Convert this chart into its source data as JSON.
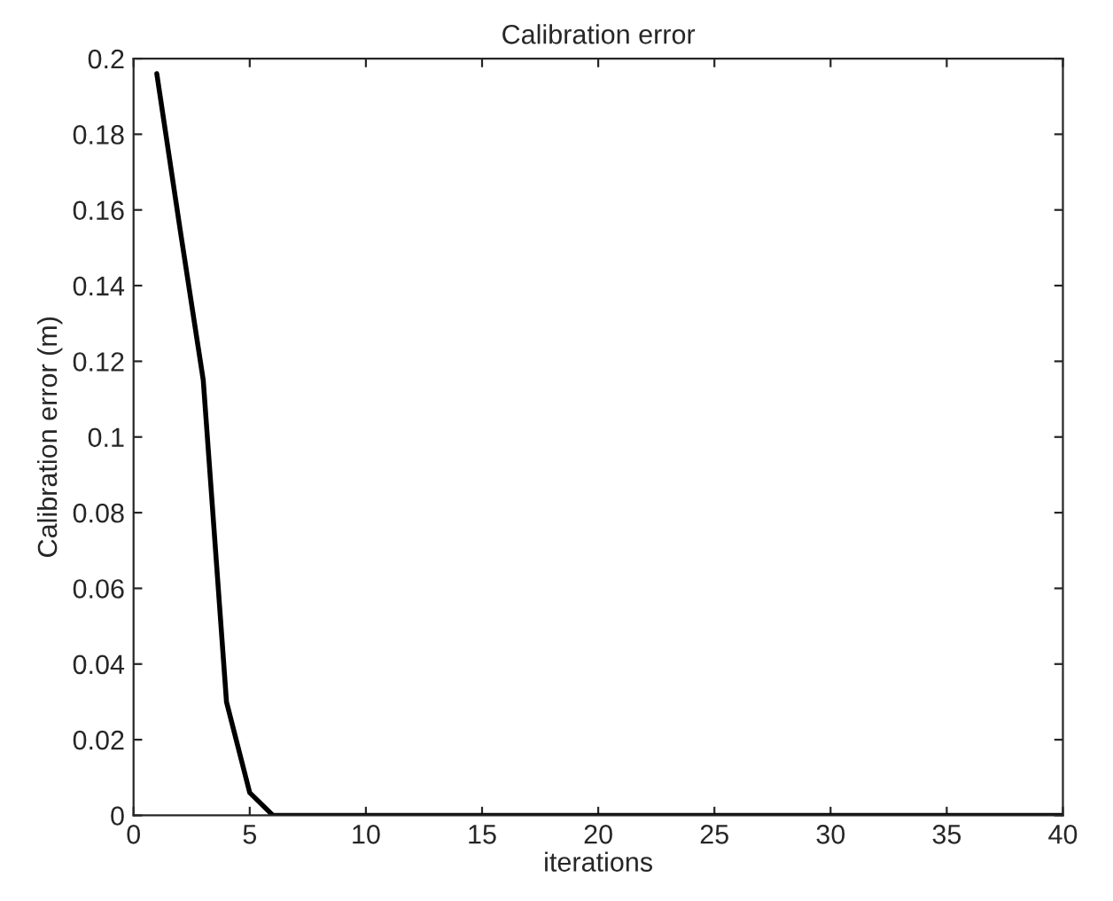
{
  "chart_data": {
    "type": "line",
    "title": "Calibration error",
    "xlabel": "iterations",
    "ylabel": "Calibration error (m)",
    "x": [
      1,
      2,
      3,
      4,
      5,
      6,
      7,
      8,
      9,
      10,
      11,
      12,
      13,
      14,
      15,
      16,
      17,
      18,
      19,
      20,
      21,
      22,
      23,
      24,
      25,
      26,
      27,
      28,
      29,
      30,
      31,
      32,
      33,
      34,
      35,
      36,
      37,
      38,
      39,
      40
    ],
    "series": [
      {
        "color": "#000000",
        "values": [
          0.196,
          0.155,
          0.115,
          0.03,
          0.006,
          0,
          0,
          0,
          0,
          0,
          0,
          0,
          0,
          0,
          0,
          0,
          0,
          0,
          0,
          0,
          0,
          0,
          0,
          0,
          0,
          0,
          0,
          0,
          0,
          0,
          0,
          0,
          0,
          0,
          0,
          0,
          0,
          0,
          0,
          0
        ]
      }
    ],
    "xlim": [
      0,
      40
    ],
    "xticks": [
      0,
      5,
      10,
      15,
      20,
      25,
      30,
      35,
      40
    ],
    "ylim": [
      0,
      0.2
    ],
    "yticks": [
      0,
      0.02,
      0.04,
      0.06,
      0.08,
      0.1,
      0.12,
      0.14,
      0.16,
      0.18,
      0.2
    ],
    "grid": false,
    "legend": false
  }
}
